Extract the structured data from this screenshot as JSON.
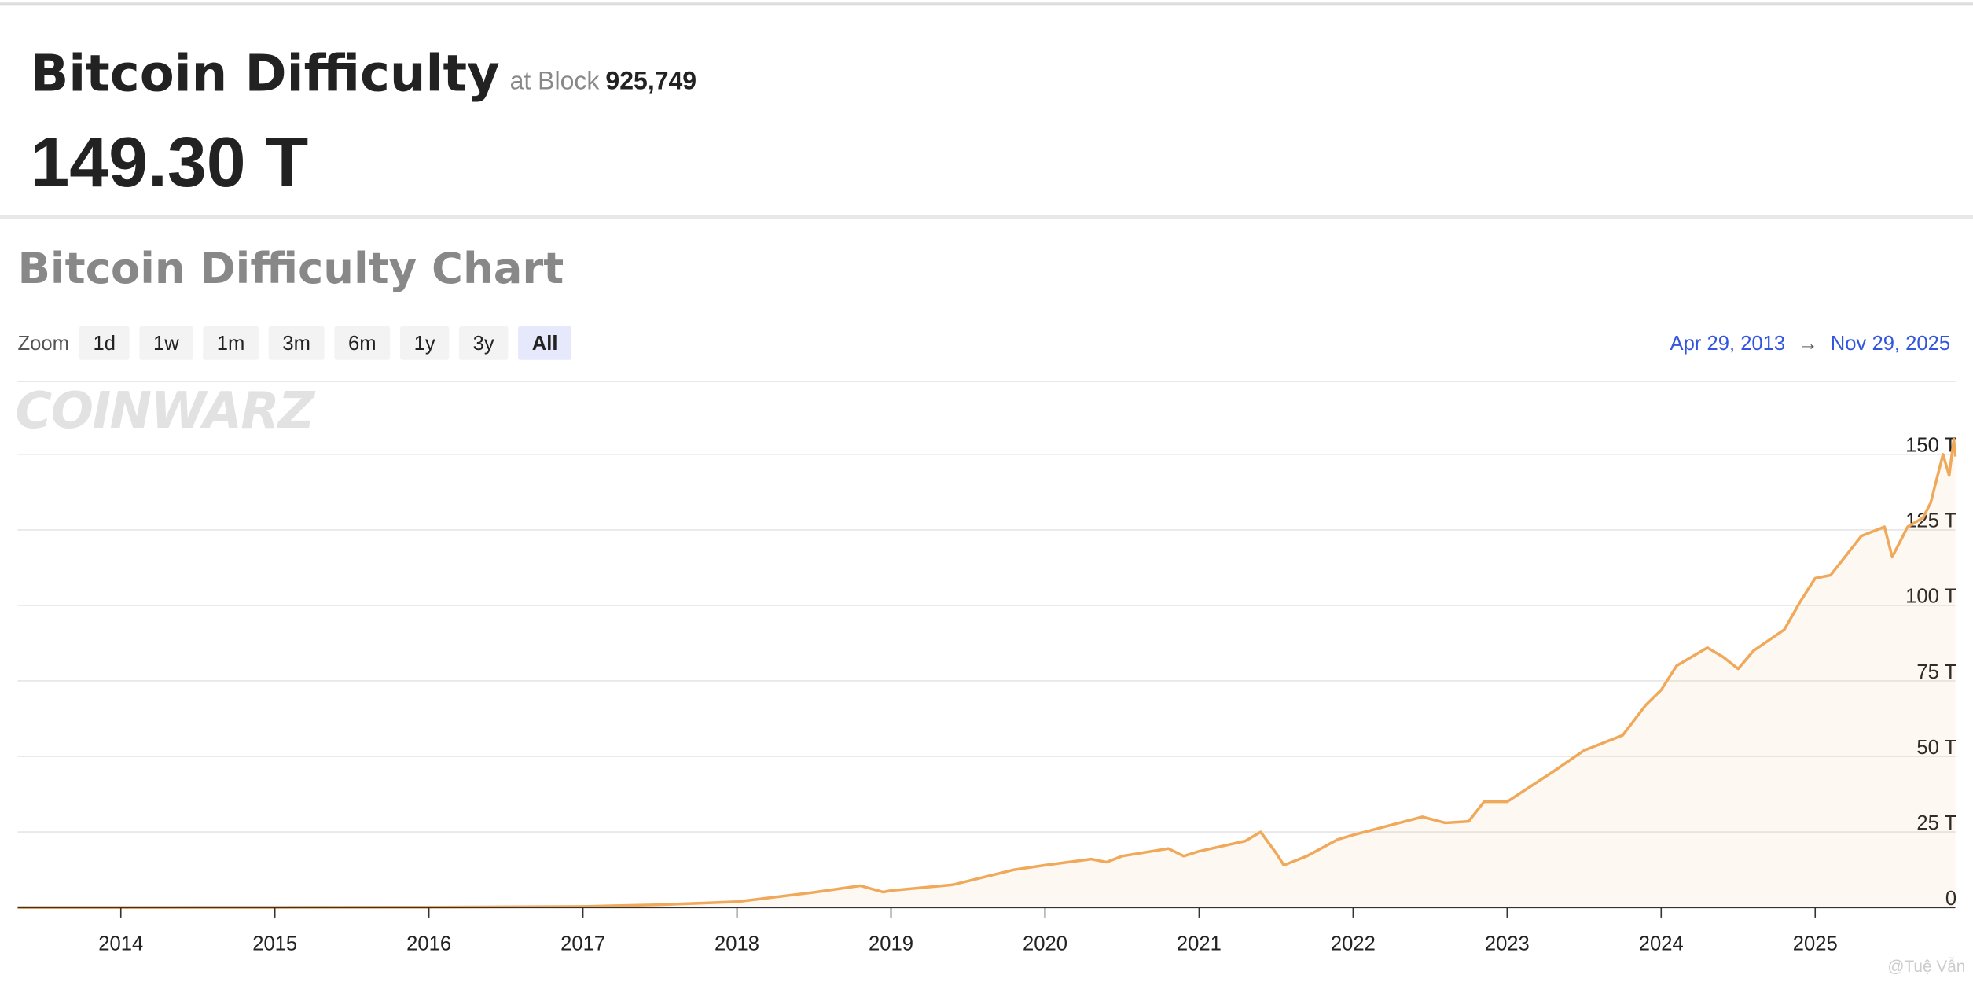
{
  "header": {
    "title": "Bitcoin Difficulty",
    "block_label": "at Block",
    "block": "925,749",
    "value": "149.30 T"
  },
  "chart_data": {
    "type": "line",
    "title": "Bitcoin Difficulty Chart",
    "zoom": {
      "label": "Zoom",
      "options": [
        "1d",
        "1w",
        "1m",
        "3m",
        "6m",
        "1y",
        "3y",
        "All"
      ],
      "selected": "All"
    },
    "range": {
      "start": "Apr 29, 2013",
      "arrow": "→",
      "end": "Nov 29, 2025"
    },
    "watermark": "COINWARZ",
    "credit": "@Tuệ Vẫn",
    "x": [
      2013.33,
      2014,
      2015,
      2016,
      2017,
      2017.5,
      2018,
      2018.5,
      2018.8,
      2018.95,
      2019,
      2019.4,
      2019.6,
      2019.8,
      2020,
      2020.3,
      2020.4,
      2020.5,
      2020.8,
      2020.9,
      2021,
      2021.3,
      2021.4,
      2021.5,
      2021.55,
      2021.7,
      2021.9,
      2022,
      2022.3,
      2022.45,
      2022.6,
      2022.75,
      2022.85,
      2023,
      2023.3,
      2023.5,
      2023.75,
      2023.9,
      2024,
      2024.1,
      2024.3,
      2024.4,
      2024.5,
      2024.6,
      2024.8,
      2024.9,
      2025,
      2025.1,
      2025.3,
      2025.45,
      2025.5,
      2025.6,
      2025.7,
      2025.75,
      2025.83,
      2025.87,
      2025.9,
      2025.91
    ],
    "values": [
      0.01,
      0.0014,
      0.04,
      0.1,
      0.32,
      0.9,
      1.9,
      5.0,
      7.2,
      5.1,
      5.6,
      7.5,
      10,
      12.5,
      14,
      16,
      15,
      17,
      19.5,
      17,
      18.6,
      22,
      25,
      18,
      14,
      17,
      22.5,
      24,
      28,
      30,
      28,
      28.5,
      35,
      35,
      45,
      52,
      57,
      67,
      72,
      80,
      86,
      83,
      79,
      85,
      92,
      101,
      109,
      110,
      123,
      126,
      116,
      126,
      129,
      134,
      150,
      143,
      155,
      149.3
    ],
    "color": "#f0a95a",
    "area": true,
    "xlim": [
      2013.33,
      2025.91
    ],
    "xticks": [
      2014,
      2015,
      2016,
      2017,
      2018,
      2019,
      2020,
      2021,
      2022,
      2023,
      2024,
      2025
    ],
    "ylim": [
      0,
      160
    ],
    "yticks": [
      0,
      {
        "value": 25,
        "label": "25 T"
      },
      {
        "value": 50,
        "label": "50 T"
      },
      {
        "value": 75,
        "label": "75 T"
      },
      {
        "value": 100,
        "label": "100 T"
      },
      {
        "value": 125,
        "label": "125 T"
      },
      {
        "value": 150,
        "label": "150 T"
      }
    ],
    "grid": true
  }
}
